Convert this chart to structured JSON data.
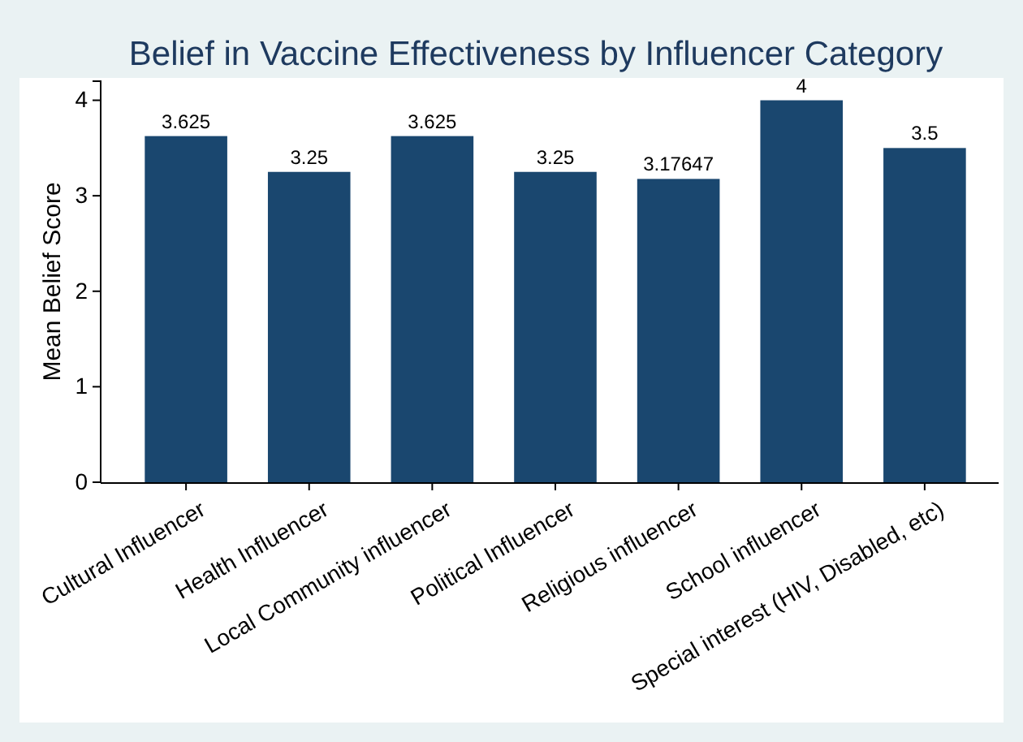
{
  "chart_data": {
    "type": "bar",
    "title": "Belief in Vaccine Effectiveness by Influencer Category",
    "ylabel": "Mean Belief Score",
    "categories": [
      "Cultural Influencer",
      "Health Influencer",
      "Local Community influencer",
      "Political Influencer",
      "Religious influencer",
      "School influencer",
      "Special interest (HIV, Disabled, etc)"
    ],
    "values": [
      3.625,
      3.25,
      3.625,
      3.25,
      3.17647,
      4,
      3.5
    ],
    "color": "#1a476f",
    "ylim": [
      0,
      4.2
    ],
    "yticks": [
      0,
      1,
      2,
      3,
      4
    ],
    "data_labels": true,
    "grid": false
  }
}
